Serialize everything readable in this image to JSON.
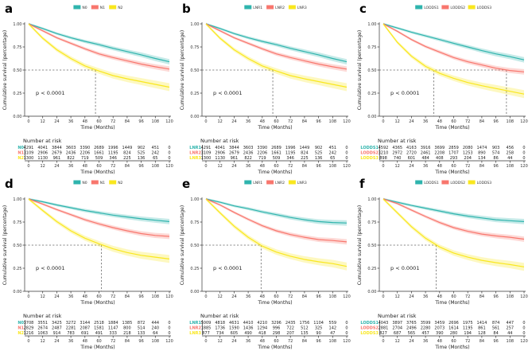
{
  "figure": {
    "ylabel": "Cumulative survival (percentage)",
    "xlabel": "Time (Months)",
    "risk_title": "Number at risk",
    "p_label": "p < 0.0001",
    "y_tick_labels": [
      "1.00",
      "0.75",
      "0.50",
      "0.25",
      "0.00"
    ],
    "x_ticks": [
      0,
      12,
      24,
      36,
      48,
      60,
      72,
      84,
      96,
      108,
      120
    ]
  },
  "colors": {
    "group1": "#2fb4ad",
    "group2": "#f8766d",
    "group3": "#f9e71e",
    "axis": "#333333",
    "dashed_guide": "#666666"
  },
  "chart_data": [
    {
      "type": "line",
      "panel": "a",
      "p_label": "p < 0.0001",
      "median_x": [
        57
      ],
      "x": [
        0,
        12,
        24,
        36,
        48,
        60,
        72,
        84,
        96,
        108,
        120
      ],
      "series": [
        {
          "name": "N0",
          "color": "#2fb4ad",
          "survival": [
            1.0,
            0.95,
            0.895,
            0.85,
            0.81,
            0.775,
            0.735,
            0.7,
            0.665,
            0.625,
            0.59
          ],
          "at_risk": [
            4291,
            4041,
            3844,
            3603,
            3390,
            2689,
            1996,
            1449,
            902,
            451,
            0
          ]
        },
        {
          "name": "N1",
          "color": "#f8766d",
          "survival": [
            1.0,
            0.925,
            0.85,
            0.79,
            0.73,
            0.675,
            0.635,
            0.6,
            0.565,
            0.535,
            0.51
          ],
          "at_risk": [
            3109,
            2906,
            2679,
            2436,
            2206,
            1661,
            1195,
            824,
            525,
            242,
            0
          ]
        },
        {
          "name": "N2",
          "color": "#f9e71e",
          "survival": [
            1.0,
            0.845,
            0.72,
            0.625,
            0.545,
            0.49,
            0.44,
            0.405,
            0.375,
            0.345,
            0.315
          ],
          "at_risk": [
            1300,
            1130,
            961,
            822,
            719,
            509,
            346,
            225,
            136,
            65,
            0
          ]
        }
      ]
    },
    {
      "type": "line",
      "panel": "b",
      "p_label": "p < 0.0001",
      "median_x": [
        57
      ],
      "x": [
        0,
        12,
        24,
        36,
        48,
        60,
        72,
        84,
        96,
        108,
        120
      ],
      "series": [
        {
          "name": "LNR1",
          "color": "#2fb4ad",
          "survival": [
            1.0,
            0.95,
            0.895,
            0.85,
            0.81,
            0.775,
            0.735,
            0.7,
            0.665,
            0.625,
            0.59
          ],
          "at_risk": [
            4291,
            4041,
            3844,
            3603,
            3390,
            2689,
            1996,
            1449,
            902,
            451,
            0
          ]
        },
        {
          "name": "LNR2",
          "color": "#f8766d",
          "survival": [
            1.0,
            0.925,
            0.85,
            0.79,
            0.73,
            0.675,
            0.635,
            0.6,
            0.565,
            0.535,
            0.51
          ],
          "at_risk": [
            3109,
            2906,
            2679,
            2436,
            2206,
            1661,
            1195,
            824,
            525,
            242,
            0
          ]
        },
        {
          "name": "LNR3",
          "color": "#f9e71e",
          "survival": [
            1.0,
            0.845,
            0.72,
            0.625,
            0.545,
            0.49,
            0.44,
            0.405,
            0.375,
            0.345,
            0.315
          ],
          "at_risk": [
            1300,
            1130,
            961,
            822,
            719,
            509,
            346,
            225,
            136,
            65,
            0
          ]
        }
      ]
    },
    {
      "type": "line",
      "panel": "c",
      "p_label": "p < 0.0001",
      "median_x": [
        43,
        105
      ],
      "x": [
        0,
        12,
        24,
        36,
        48,
        60,
        72,
        84,
        96,
        108,
        120
      ],
      "series": [
        {
          "name": "LODDS1",
          "color": "#2fb4ad",
          "survival": [
            1.0,
            0.955,
            0.91,
            0.87,
            0.83,
            0.79,
            0.75,
            0.71,
            0.675,
            0.645,
            0.61
          ],
          "at_risk": [
            4592,
            4365,
            4163,
            3916,
            3699,
            2859,
            2080,
            1474,
            903,
            456,
            0
          ]
        },
        {
          "name": "LODDS2",
          "color": "#f8766d",
          "survival": [
            1.0,
            0.92,
            0.83,
            0.755,
            0.695,
            0.635,
            0.59,
            0.555,
            0.52,
            0.495,
            0.48
          ],
          "at_risk": [
            3210,
            2972,
            2720,
            2461,
            2208,
            1707,
            1253,
            890,
            574,
            258,
            0
          ]
        },
        {
          "name": "LODDS3",
          "color": "#f9e71e",
          "survival": [
            1.0,
            0.8,
            0.65,
            0.54,
            0.465,
            0.41,
            0.365,
            0.33,
            0.3,
            0.27,
            0.24
          ],
          "at_risk": [
            898,
            740,
            601,
            484,
            408,
            293,
            204,
            134,
            86,
            44,
            0
          ]
        }
      ]
    },
    {
      "type": "line",
      "panel": "d",
      "p_label": "p < 0.0001",
      "median_x": [
        62
      ],
      "x": [
        0,
        12,
        24,
        36,
        48,
        60,
        72,
        84,
        96,
        108,
        120
      ],
      "series": [
        {
          "name": "N0",
          "color": "#2fb4ad",
          "survival": [
            1.0,
            0.97,
            0.935,
            0.905,
            0.875,
            0.85,
            0.825,
            0.805,
            0.785,
            0.77,
            0.755
          ],
          "at_risk": [
            3708,
            3551,
            3425,
            3272,
            3144,
            2518,
            1884,
            1385,
            872,
            444,
            0
          ]
        },
        {
          "name": "N1",
          "color": "#f8766d",
          "survival": [
            1.0,
            0.945,
            0.885,
            0.83,
            0.775,
            0.73,
            0.69,
            0.655,
            0.625,
            0.605,
            0.595
          ],
          "at_risk": [
            2829,
            2674,
            2487,
            2281,
            2087,
            1581,
            1147,
            800,
            514,
            240,
            0
          ]
        },
        {
          "name": "N2",
          "color": "#f9e71e",
          "survival": [
            1.0,
            0.875,
            0.755,
            0.655,
            0.575,
            0.515,
            0.46,
            0.42,
            0.39,
            0.37,
            0.35
          ],
          "at_risk": [
            1216,
            1063,
            914,
            783,
            691,
            491,
            333,
            218,
            133,
            64,
            0
          ]
        }
      ]
    },
    {
      "type": "line",
      "panel": "e",
      "p_label": "p < 0.0001",
      "median_x": [
        47
      ],
      "x": [
        0,
        12,
        24,
        36,
        48,
        60,
        72,
        84,
        96,
        108,
        120
      ],
      "series": [
        {
          "name": "LNR1",
          "color": "#2fb4ad",
          "survival": [
            1.0,
            0.965,
            0.925,
            0.895,
            0.86,
            0.83,
            0.8,
            0.775,
            0.755,
            0.745,
            0.74
          ],
          "at_risk": [
            5009,
            4818,
            4631,
            4410,
            4210,
            3296,
            2435,
            1756,
            1104,
            559,
            0
          ]
        },
        {
          "name": "LNR2",
          "color": "#f8766d",
          "survival": [
            1.0,
            0.935,
            0.855,
            0.78,
            0.71,
            0.655,
            0.615,
            0.585,
            0.56,
            0.55,
            0.535
          ],
          "at_risk": [
            1885,
            1736,
            1590,
            1436,
            1294,
            996,
            722,
            512,
            325,
            142,
            0
          ]
        },
        {
          "name": "LNR3",
          "color": "#f9e71e",
          "survival": [
            1.0,
            0.85,
            0.705,
            0.585,
            0.49,
            0.425,
            0.38,
            0.345,
            0.32,
            0.3,
            0.27
          ],
          "at_risk": [
            877,
            734,
            605,
            490,
            418,
            298,
            207,
            135,
            90,
            47,
            0
          ]
        }
      ]
    },
    {
      "type": "line",
      "panel": "f",
      "p_label": "p < 0.0001",
      "median_x": [
        45
      ],
      "x": [
        0,
        12,
        24,
        36,
        48,
        60,
        72,
        84,
        96,
        108,
        120
      ],
      "series": [
        {
          "name": "LODDS1",
          "color": "#2fb4ad",
          "survival": [
            1.0,
            0.965,
            0.93,
            0.9,
            0.87,
            0.84,
            0.815,
            0.795,
            0.775,
            0.765,
            0.755
          ],
          "at_risk": [
            4043,
            3897,
            3765,
            3599,
            3459,
            2696,
            1975,
            1414,
            874,
            447,
            0
          ]
        },
        {
          "name": "LODDS2",
          "color": "#f8766d",
          "survival": [
            1.0,
            0.95,
            0.88,
            0.81,
            0.745,
            0.69,
            0.65,
            0.62,
            0.6,
            0.585,
            0.565
          ],
          "at_risk": [
            2881,
            2704,
            2496,
            2280,
            2073,
            1614,
            1195,
            861,
            561,
            257,
            0
          ]
        },
        {
          "name": "LODDS3",
          "color": "#f9e71e",
          "survival": [
            1.0,
            0.85,
            0.7,
            0.575,
            0.48,
            0.415,
            0.37,
            0.335,
            0.31,
            0.29,
            0.265
          ],
          "at_risk": [
            827,
            687,
            565,
            457,
            390,
            280,
            194,
            128,
            84,
            44,
            0
          ]
        }
      ]
    }
  ]
}
